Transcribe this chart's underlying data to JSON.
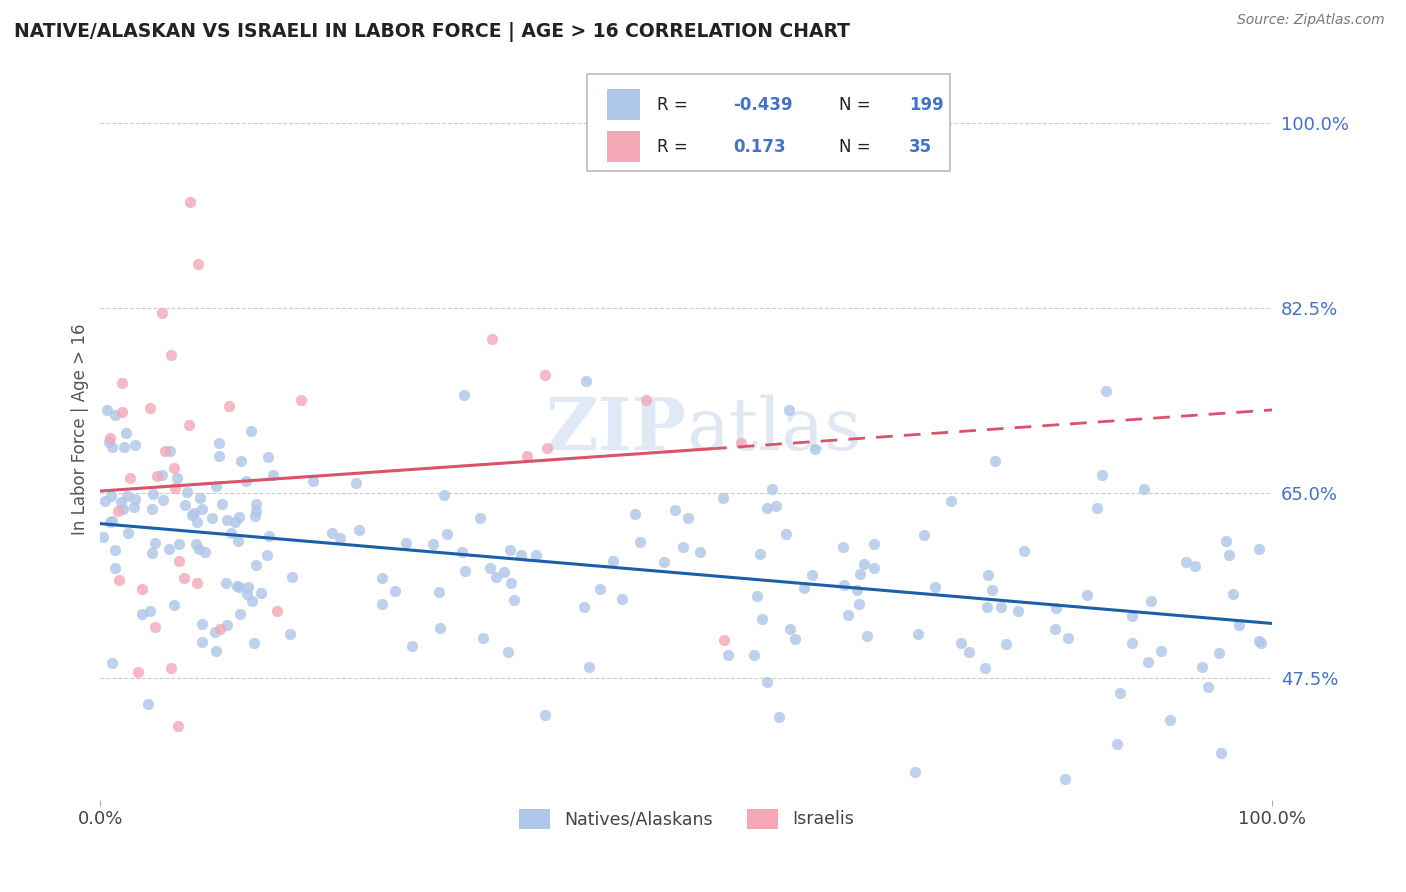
{
  "title": "NATIVE/ALASKAN VS ISRAELI IN LABOR FORCE | AGE > 16 CORRELATION CHART",
  "source": "Source: ZipAtlas.com",
  "ylabel": "In Labor Force | Age > 16",
  "xlim": [
    0.0,
    1.0
  ],
  "ylim": [
    0.36,
    1.06
  ],
  "yticks": [
    0.475,
    0.65,
    0.825,
    1.0
  ],
  "ytick_labels": [
    "47.5%",
    "65.0%",
    "82.5%",
    "100.0%"
  ],
  "xtick_labels": [
    "0.0%",
    "100.0%"
  ],
  "xticks": [
    0.0,
    1.0
  ],
  "native_R": -0.439,
  "native_N": 199,
  "israeli_R": 0.173,
  "israeli_N": 35,
  "native_color": "#aec6e8",
  "israeli_color": "#f4a7b5",
  "native_line_color": "#1a5fa8",
  "israeli_line_color": "#d9536a",
  "background_color": "#ffffff",
  "grid_color": "#cccccc",
  "title_color": "#222222",
  "legend_text_color": "#4472c4",
  "watermark_color": "#ccddf0",
  "seed": 17
}
